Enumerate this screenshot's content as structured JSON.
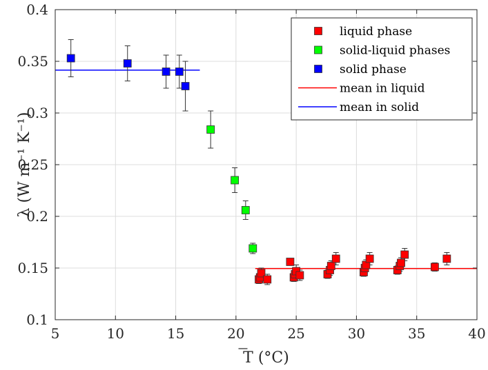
{
  "chart_data": {
    "type": "scatter",
    "xlabel": "T (°C)",
    "ylabel": "λ (W m⁻¹ K⁻¹)",
    "xlim": [
      5,
      40
    ],
    "ylim": [
      0.1,
      0.4
    ],
    "xticks": [
      "5",
      "10",
      "15",
      "20",
      "25",
      "30",
      "35",
      "40"
    ],
    "yticks": [
      "0.1",
      "0.15",
      "0.2",
      "0.25",
      "0.3",
      "0.35",
      "0.4"
    ],
    "grid": true,
    "legend_position": "top-right",
    "series": [
      {
        "name": "liquid phase",
        "marker": "square",
        "color": "#ff0000",
        "points": [
          {
            "x": 21.9,
            "y": 0.139,
            "err": 0.004
          },
          {
            "x": 22.0,
            "y": 0.141,
            "err": 0.004
          },
          {
            "x": 22.1,
            "y": 0.145,
            "err": 0.005
          },
          {
            "x": 22.6,
            "y": 0.139,
            "err": 0.005
          },
          {
            "x": 24.5,
            "y": 0.156,
            "err": 0.003
          },
          {
            "x": 24.8,
            "y": 0.141,
            "err": 0.004
          },
          {
            "x": 24.9,
            "y": 0.144,
            "err": 0.005
          },
          {
            "x": 25.0,
            "y": 0.147,
            "err": 0.006
          },
          {
            "x": 25.3,
            "y": 0.143,
            "err": 0.005
          },
          {
            "x": 27.6,
            "y": 0.144,
            "err": 0.004
          },
          {
            "x": 27.8,
            "y": 0.148,
            "err": 0.005
          },
          {
            "x": 27.9,
            "y": 0.152,
            "err": 0.005
          },
          {
            "x": 28.3,
            "y": 0.159,
            "err": 0.006
          },
          {
            "x": 30.6,
            "y": 0.146,
            "err": 0.004
          },
          {
            "x": 30.7,
            "y": 0.15,
            "err": 0.005
          },
          {
            "x": 30.8,
            "y": 0.153,
            "err": 0.005
          },
          {
            "x": 31.1,
            "y": 0.159,
            "err": 0.006
          },
          {
            "x": 33.4,
            "y": 0.148,
            "err": 0.004
          },
          {
            "x": 33.6,
            "y": 0.152,
            "err": 0.005
          },
          {
            "x": 33.7,
            "y": 0.155,
            "err": 0.005
          },
          {
            "x": 34.0,
            "y": 0.163,
            "err": 0.006
          },
          {
            "x": 36.5,
            "y": 0.151,
            "err": 0.004
          },
          {
            "x": 37.5,
            "y": 0.159,
            "err": 0.006
          }
        ]
      },
      {
        "name": "solid-liquid phases",
        "marker": "square",
        "color": "#00ff00",
        "points": [
          {
            "x": 17.9,
            "y": 0.284,
            "err": 0.018
          },
          {
            "x": 19.9,
            "y": 0.235,
            "err": 0.012
          },
          {
            "x": 20.8,
            "y": 0.206,
            "err": 0.009
          },
          {
            "x": 21.4,
            "y": 0.169,
            "err": 0.005
          }
        ]
      },
      {
        "name": "solid phase",
        "marker": "square",
        "color": "#0000ff",
        "points": [
          {
            "x": 6.3,
            "y": 0.353,
            "err": 0.018
          },
          {
            "x": 11.0,
            "y": 0.348,
            "err": 0.017
          },
          {
            "x": 14.2,
            "y": 0.34,
            "err": 0.016
          },
          {
            "x": 15.3,
            "y": 0.34,
            "err": 0.016
          },
          {
            "x": 15.8,
            "y": 0.326,
            "err": 0.024
          }
        ]
      }
    ],
    "lines": [
      {
        "name": "mean in liquid",
        "color": "#ff0000",
        "x": [
          21.6,
          40
        ],
        "y": [
          0.1495,
          0.1495
        ]
      },
      {
        "name": "mean in solid",
        "color": "#0000ff",
        "x": [
          5,
          17
        ],
        "y": [
          0.3415,
          0.3415
        ]
      }
    ]
  }
}
